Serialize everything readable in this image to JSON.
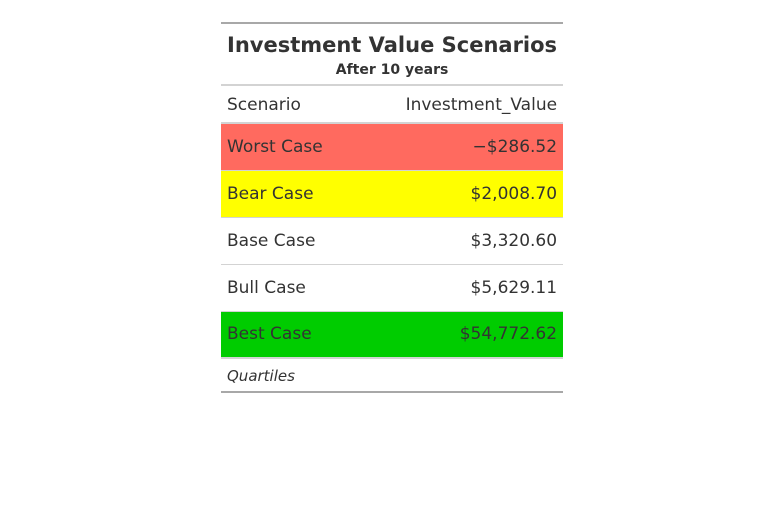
{
  "table": {
    "title": "Investment Value Scenarios",
    "subtitle": "After 10 years",
    "columns": [
      "Scenario",
      "Investment_Value"
    ],
    "rows": [
      {
        "scenario": "Worst Case",
        "value": "−$286.52",
        "bg": "#ff6a5f"
      },
      {
        "scenario": "Bear Case",
        "value": "$2,008.70",
        "bg": "#ffff00"
      },
      {
        "scenario": "Base Case",
        "value": "$3,320.60",
        "bg": "#ffffff"
      },
      {
        "scenario": "Bull Case",
        "value": "$5,629.11",
        "bg": "#ffffff"
      },
      {
        "scenario": "Best Case",
        "value": "$54,772.62",
        "bg": "#00cc00"
      }
    ],
    "footnote": "Quartiles"
  }
}
